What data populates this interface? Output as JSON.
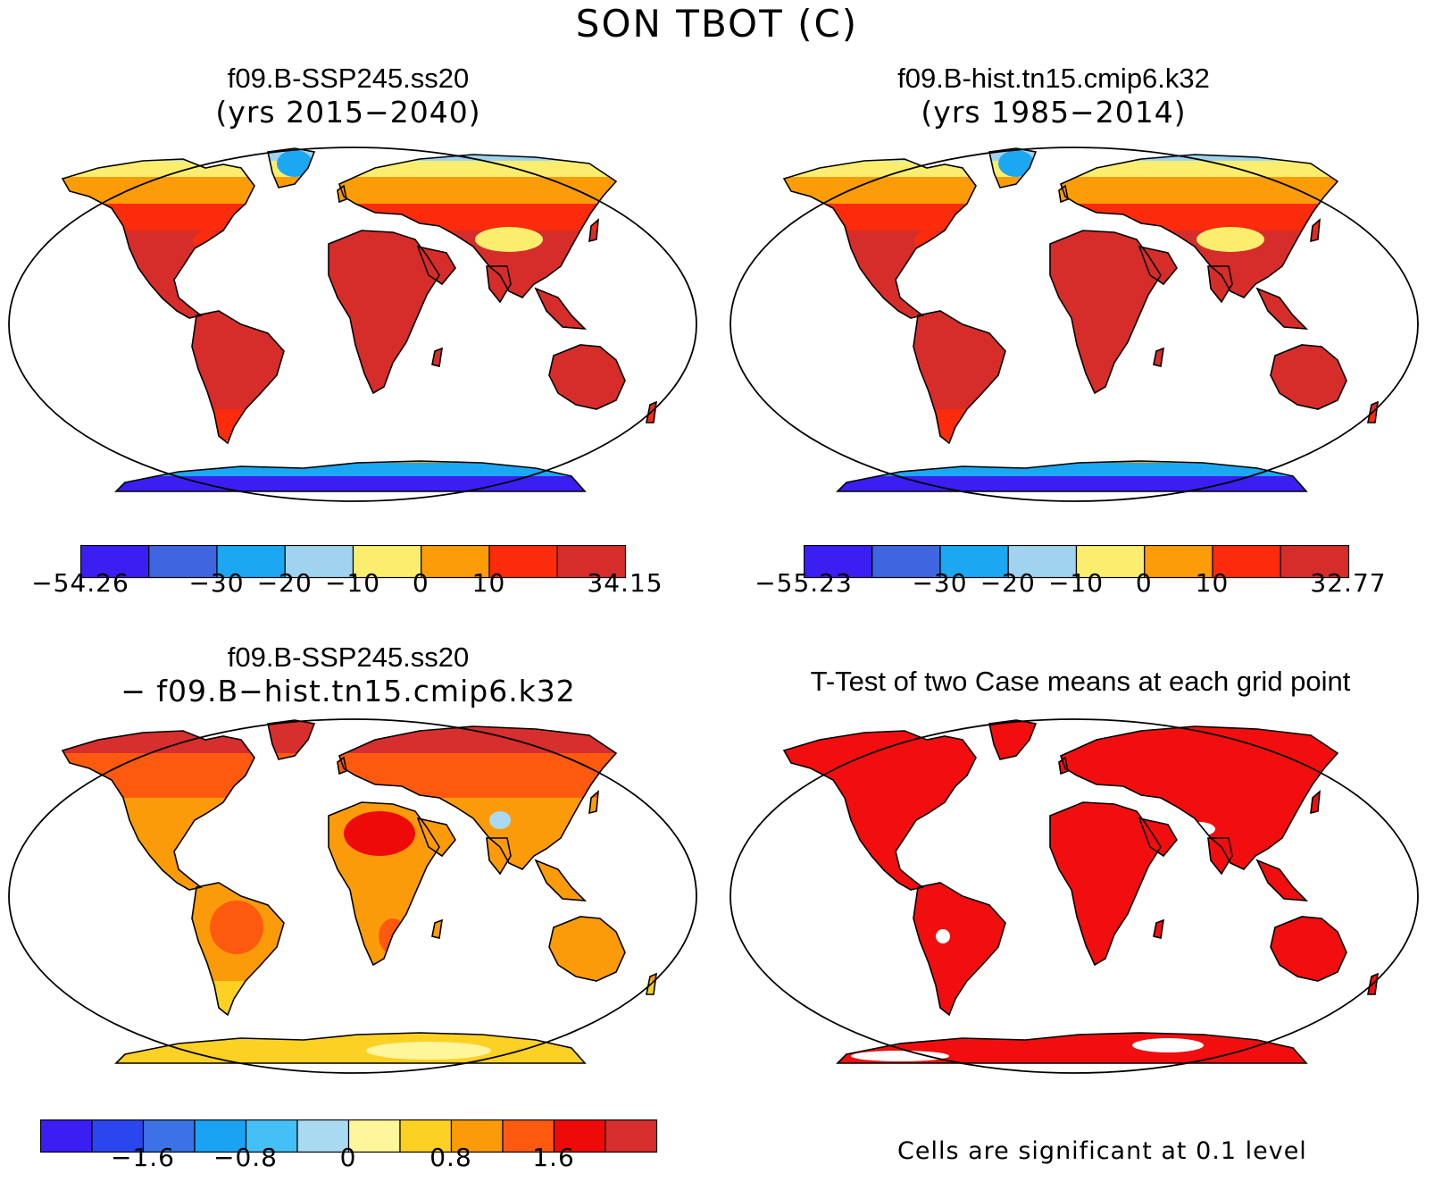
{
  "main_title": "SON TBOT (C)",
  "panels": [
    {
      "title_line1": "f09.B-SSP245.ss20",
      "title_line2": "(yrs 2015−2040)"
    },
    {
      "title_line1": "f09.B-hist.tn15.cmip6.k32",
      "title_line2": "(yrs 1985−2014)"
    },
    {
      "title_line1": "f09.B-SSP245.ss20",
      "title_line2": "− f09.B−hist.tn15.cmip6.k32"
    },
    {
      "title_line1": "T-Test of two Case means at each grid point"
    }
  ],
  "colorbars": [
    {
      "colors": [
        "#3b1ef2",
        "#3f66e0",
        "#1ba7f2",
        "#9fd3ef",
        "#fbee6f",
        "#fb9c08",
        "#fb2b0c",
        "#d62d2b"
      ],
      "labels": [
        "−54.26",
        "−30",
        "−20",
        "−10",
        "0",
        "10",
        "34.15"
      ]
    },
    {
      "colors": [
        "#3b1ef2",
        "#3f66e0",
        "#1ba7f2",
        "#9fd3ef",
        "#fbee6f",
        "#fb9c08",
        "#fb2b0c",
        "#d62d2b"
      ],
      "labels": [
        "−55.23",
        "−30",
        "−20",
        "−10",
        "0",
        "10",
        "32.77"
      ]
    },
    {
      "colors": [
        "#3b1ef2",
        "#2a46ee",
        "#3d72e6",
        "#1aa2f3",
        "#45c0f6",
        "#a9daf1",
        "#fff59b",
        "#fcd124",
        "#fb9b09",
        "#fd5a0f",
        "#ef0a0a",
        "#d62f2e"
      ],
      "labels": [
        "−1.6",
        "−0.8",
        "0",
        "0.8",
        "1.6"
      ]
    }
  ],
  "footnote": "Cells are significant at 0.1 level",
  "palette": {
    "hot": "#d62d2b",
    "warm": "#fb2b0c",
    "orange": "#fb9c08",
    "yellow": "#fbee6f",
    "lightblue": "#9fd3ef",
    "blue": "#1ba7f2",
    "deepblue": "#3b1ef2",
    "sig": "#f20e0e"
  }
}
